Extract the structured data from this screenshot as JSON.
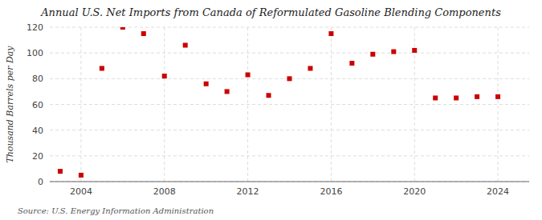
{
  "chart_data": {
    "type": "scatter",
    "title": "Annual U.S. Net Imports from Canada of Reformulated Gasoline Blending Components",
    "y_label": "Thousand Barrels per Day",
    "annotations": [
      "Source: U.S. Energy Information Administration"
    ],
    "x": [
      2003,
      2004,
      2005,
      2006,
      2007,
      2008,
      2009,
      2010,
      2011,
      2012,
      2013,
      2014,
      2015,
      2016,
      2017,
      2018,
      2019,
      2020,
      2021,
      2022,
      2023,
      2024
    ],
    "values": [
      8,
      5,
      88,
      120,
      115,
      82,
      106,
      76,
      70,
      83,
      67,
      80,
      88,
      115,
      92,
      99,
      101,
      102,
      65,
      65,
      66,
      66
    ],
    "color": "#cc0000",
    "marker": "square",
    "xlim": [
      2002.5,
      2025.5
    ],
    "xticks": [
      2004,
      2008,
      2012,
      2016,
      2020,
      2024
    ],
    "ylim": [
      0,
      120
    ],
    "yticks": [
      0,
      20,
      40,
      60,
      80,
      100,
      120
    ],
    "grid": true
  }
}
